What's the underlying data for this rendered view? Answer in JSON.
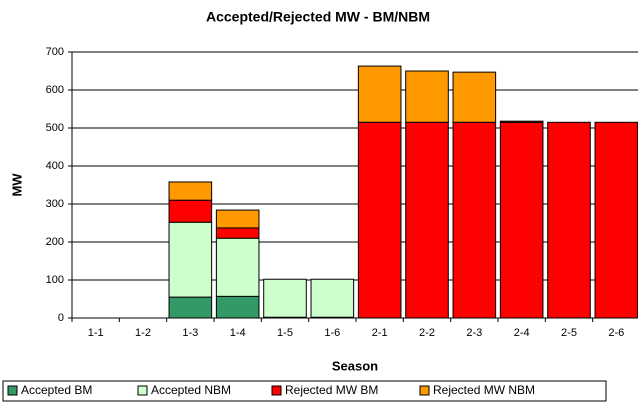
{
  "chart_data": {
    "type": "stacked_bar",
    "title": "Accepted/Rejected MW - BM/NBM",
    "x_label": "Season",
    "y_label": "MW",
    "categories": [
      "1-1",
      "1-2",
      "1-3",
      "1-4",
      "1-5",
      "1-6",
      "2-1",
      "2-2",
      "2-3",
      "2-4",
      "2-5",
      "2-6"
    ],
    "series": [
      {
        "name": "Accepted BM",
        "color": "#339966",
        "values": [
          0,
          0,
          55,
          57,
          2,
          2,
          0,
          0,
          0,
          0,
          0,
          0
        ]
      },
      {
        "name": "Accepted NBM",
        "color": "#ccffcc",
        "values": [
          0,
          0,
          197,
          153,
          100,
          100,
          0,
          0,
          0,
          0,
          0,
          0
        ]
      },
      {
        "name": "Rejected MW BM",
        "color": "#ff0000",
        "values": [
          0,
          0,
          58,
          27,
          0,
          0,
          515,
          515,
          515,
          515,
          515,
          515
        ]
      },
      {
        "name": "Rejected MW NBM",
        "color": "#ff9900",
        "values": [
          0,
          0,
          48,
          47,
          0,
          0,
          148,
          135,
          132,
          3,
          0,
          0
        ]
      }
    ],
    "ylim": [
      0,
      700
    ],
    "yticks": [
      0,
      100,
      200,
      300,
      400,
      500,
      600,
      700
    ],
    "grid": true
  }
}
